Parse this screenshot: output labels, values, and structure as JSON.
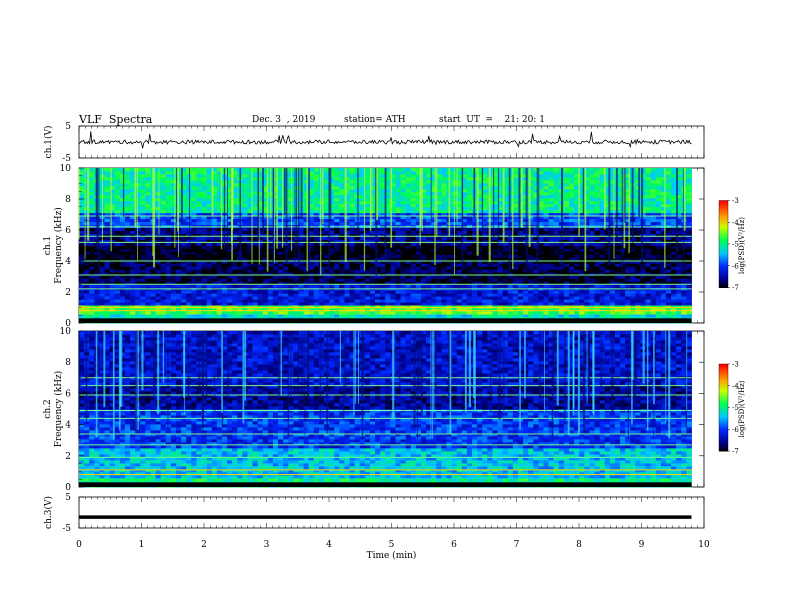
{
  "header": {
    "title": "VLF  Spectra",
    "date": "Dec. 3  , 2019",
    "station": "station= ATH",
    "start": "start  UT  =    21: 20: 1"
  },
  "chart_data": [
    {
      "type": "line",
      "title": "",
      "ylabel": "ch.1(V)",
      "ylim": [
        -5,
        5
      ],
      "yticks": [
        "5",
        "-5"
      ],
      "xlim": [
        0,
        10
      ],
      "series": [
        {
          "values": "noisy trace near 0 V with sparse spikes up to about +2 V and down to about -3 V"
        }
      ]
    },
    {
      "type": "heatmap",
      "ylabel": "ch.1",
      "ylabel2": "Frequency  (kHz)",
      "ylim": [
        0,
        10
      ],
      "yticks": [
        "0",
        "2",
        "4",
        "6",
        "8",
        "10"
      ],
      "xlim": [
        0,
        10
      ],
      "x_end_min": 9.8,
      "description_bands": [
        {
          "f_lo": 0,
          "f_hi": 0.5,
          "level": -5.2
        },
        {
          "f_lo": 0.5,
          "f_hi": 1,
          "level": -4.6
        },
        {
          "f_lo": 1,
          "f_hi": 2.5,
          "level": -6.2
        },
        {
          "f_lo": 2.5,
          "f_hi": 4,
          "level": -6.8
        },
        {
          "f_lo": 4,
          "f_hi": 5,
          "level": -7.0
        },
        {
          "f_lo": 5,
          "f_hi": 6,
          "level": -6.6
        },
        {
          "f_lo": 6,
          "f_hi": 7,
          "level": -5.9
        },
        {
          "f_lo": 7,
          "f_hi": 10,
          "level": -5.0
        }
      ],
      "colorbar": {
        "label": "log(PSD)(V²/Hz)",
        "ticks": [
          "-3",
          "-4",
          "-5",
          "-6",
          "-7"
        ],
        "range": [
          -7,
          -3
        ]
      }
    },
    {
      "type": "heatmap",
      "ylabel": "ch.2",
      "ylabel2": "Frequency  (kHz)",
      "ylim": [
        0,
        10
      ],
      "yticks": [
        "0",
        "2",
        "4",
        "6",
        "8",
        "10"
      ],
      "xlim": [
        0,
        10
      ],
      "x_end_min": 9.8,
      "description_bands": [
        {
          "f_lo": 0,
          "f_hi": 0.5,
          "level": -5.0
        },
        {
          "f_lo": 0.5,
          "f_hi": 2.5,
          "level": -5.4
        },
        {
          "f_lo": 2.5,
          "f_hi": 5,
          "level": -6.0
        },
        {
          "f_lo": 5,
          "f_hi": 6.5,
          "level": -6.5
        },
        {
          "f_lo": 6.5,
          "f_hi": 10,
          "level": -6.3
        }
      ],
      "colorbar": {
        "label": "log(PSD)(V²/Hz)",
        "ticks": [
          "-3",
          "-4",
          "-5",
          "-6",
          "-7"
        ],
        "range": [
          -7,
          -3
        ]
      }
    },
    {
      "type": "line",
      "ylabel": "ch.3(V)",
      "ylim": [
        -5,
        5
      ],
      "yticks": [
        "5",
        "-5"
      ],
      "xlim": [
        0,
        10
      ],
      "xlabel": "Time  (min)",
      "xticks": [
        "0",
        "1",
        "2",
        "3",
        "4",
        "5",
        "6",
        "7",
        "8",
        "9",
        "10"
      ],
      "series": [
        {
          "values": "flat line at about -1.5 V"
        }
      ]
    }
  ]
}
